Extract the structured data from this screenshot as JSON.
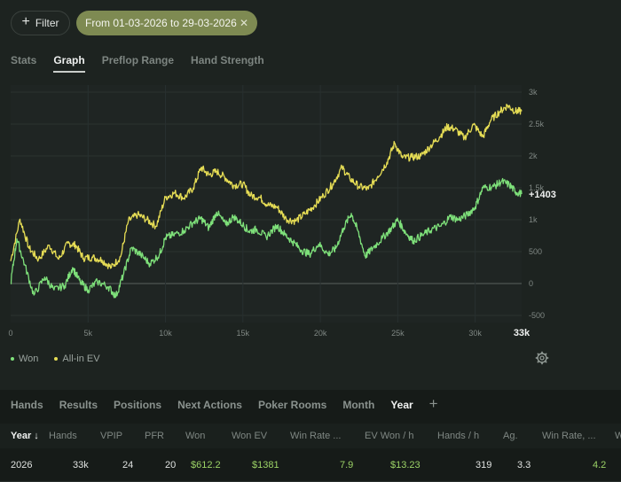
{
  "toolbar": {
    "filter_label": "Filter",
    "date_range": "From 01-03-2026 to 29-03-2026"
  },
  "tabs": [
    "Stats",
    "Graph",
    "Preflop Range",
    "Hand Strength"
  ],
  "active_tab": "Graph",
  "chart_data": {
    "type": "line",
    "x_ticks": [
      "0",
      "5k",
      "10k",
      "15k",
      "20k",
      "25k",
      "30k"
    ],
    "x_end_label": "33k",
    "y_ticks": [
      "3k",
      "2.5k",
      "2k",
      "1.5k",
      "1k",
      "500",
      "0",
      "-500"
    ],
    "xlim": [
      0,
      33000
    ],
    "ylim": [
      -500,
      3000
    ],
    "end_value_label": "+1403",
    "series": [
      {
        "name": "Won",
        "color": "#7ee07a",
        "points": [
          [
            0,
            0
          ],
          [
            400,
            700
          ],
          [
            900,
            300
          ],
          [
            1500,
            -180
          ],
          [
            2200,
            100
          ],
          [
            2800,
            -100
          ],
          [
            3500,
            -30
          ],
          [
            4000,
            250
          ],
          [
            4500,
            20
          ],
          [
            5000,
            -100
          ],
          [
            5600,
            30
          ],
          [
            6300,
            -50
          ],
          [
            6800,
            -200
          ],
          [
            7300,
            150
          ],
          [
            7800,
            560
          ],
          [
            8400,
            450
          ],
          [
            9000,
            310
          ],
          [
            9600,
            450
          ],
          [
            10000,
            720
          ],
          [
            10500,
            760
          ],
          [
            11200,
            830
          ],
          [
            11800,
            960
          ],
          [
            12300,
            1020
          ],
          [
            12800,
            870
          ],
          [
            13300,
            1120
          ],
          [
            13900,
            920
          ],
          [
            14400,
            1050
          ],
          [
            15000,
            920
          ],
          [
            15400,
            820
          ],
          [
            15900,
            850
          ],
          [
            16500,
            730
          ],
          [
            17200,
            910
          ],
          [
            17700,
            770
          ],
          [
            18200,
            660
          ],
          [
            18800,
            520
          ],
          [
            19300,
            460
          ],
          [
            19900,
            620
          ],
          [
            20500,
            460
          ],
          [
            21000,
            550
          ],
          [
            21500,
            870
          ],
          [
            22000,
            1100
          ],
          [
            22400,
            840
          ],
          [
            22900,
            430
          ],
          [
            23400,
            560
          ],
          [
            24000,
            710
          ],
          [
            24600,
            870
          ],
          [
            25000,
            1000
          ],
          [
            25500,
            800
          ],
          [
            26000,
            670
          ],
          [
            26600,
            760
          ],
          [
            27200,
            850
          ],
          [
            27800,
            900
          ],
          [
            28400,
            1050
          ],
          [
            28900,
            1000
          ],
          [
            29500,
            1080
          ],
          [
            30000,
            1200
          ],
          [
            30500,
            1500
          ],
          [
            31200,
            1520
          ],
          [
            31700,
            1600
          ],
          [
            32200,
            1550
          ],
          [
            32600,
            1440
          ],
          [
            33000,
            1403
          ]
        ]
      },
      {
        "name": "All-in EV",
        "color": "#e6dd55",
        "points": [
          [
            0,
            350
          ],
          [
            600,
            1010
          ],
          [
            1200,
            550
          ],
          [
            1800,
            380
          ],
          [
            2500,
            600
          ],
          [
            3100,
            380
          ],
          [
            3700,
            630
          ],
          [
            4200,
            600
          ],
          [
            4700,
            400
          ],
          [
            5300,
            410
          ],
          [
            5900,
            370
          ],
          [
            6500,
            250
          ],
          [
            7100,
            420
          ],
          [
            7600,
            980
          ],
          [
            8200,
            1080
          ],
          [
            8800,
            1000
          ],
          [
            9400,
            900
          ],
          [
            10000,
            1350
          ],
          [
            10600,
            1420
          ],
          [
            11200,
            1340
          ],
          [
            11800,
            1500
          ],
          [
            12300,
            1820
          ],
          [
            12800,
            1700
          ],
          [
            13300,
            1760
          ],
          [
            13900,
            1650
          ],
          [
            14400,
            1540
          ],
          [
            15000,
            1560
          ],
          [
            15500,
            1380
          ],
          [
            16100,
            1350
          ],
          [
            16600,
            1230
          ],
          [
            17200,
            1200
          ],
          [
            17800,
            1010
          ],
          [
            18400,
            980
          ],
          [
            19000,
            1090
          ],
          [
            19600,
            1220
          ],
          [
            20200,
            1380
          ],
          [
            20800,
            1560
          ],
          [
            21400,
            1820
          ],
          [
            21900,
            1650
          ],
          [
            22500,
            1520
          ],
          [
            23100,
            1480
          ],
          [
            23700,
            1680
          ],
          [
            24300,
            1900
          ],
          [
            24800,
            2200
          ],
          [
            25300,
            1970
          ],
          [
            25900,
            1980
          ],
          [
            26500,
            2000
          ],
          [
            27100,
            2150
          ],
          [
            27700,
            2300
          ],
          [
            28200,
            2460
          ],
          [
            28700,
            2420
          ],
          [
            29300,
            2280
          ],
          [
            29900,
            2490
          ],
          [
            30500,
            2300
          ],
          [
            31000,
            2560
          ],
          [
            31600,
            2700
          ],
          [
            32100,
            2790
          ],
          [
            32600,
            2700
          ],
          [
            33000,
            2700
          ]
        ]
      }
    ]
  },
  "legend": [
    "Won",
    "All-in EV"
  ],
  "bottom_tabs": [
    "Hands",
    "Results",
    "Positions",
    "Next Actions",
    "Poker Rooms",
    "Month",
    "Year"
  ],
  "bottom_active": "Year",
  "table": {
    "headers": [
      "Year ↓",
      "Hands",
      "VPIP",
      "PFR",
      "Won",
      "Won EV",
      "Win Rate ...",
      "EV Won / h",
      "Hands / h",
      "Ag.",
      "Win Rate, ...",
      "W"
    ],
    "row": [
      "2026",
      "33k",
      "24",
      "20",
      "$612.2",
      "$1381",
      "7.9",
      "$13.23",
      "319",
      "3.3",
      "4.2",
      ""
    ]
  }
}
